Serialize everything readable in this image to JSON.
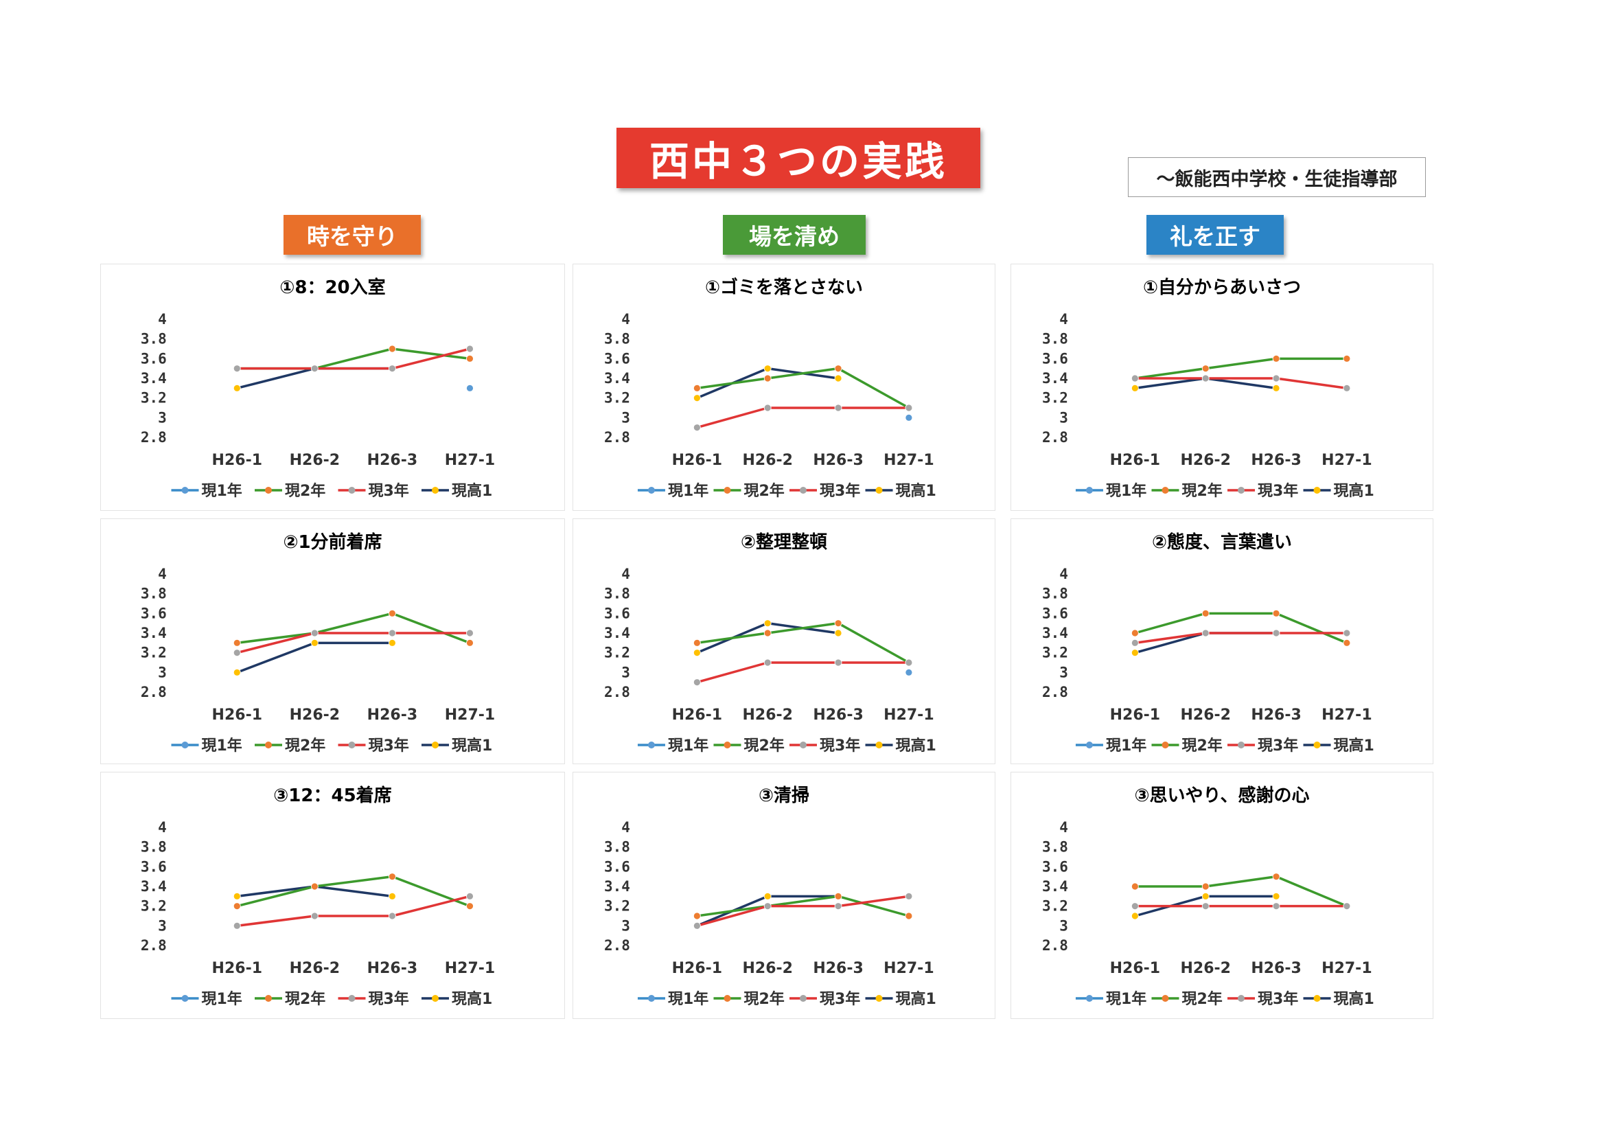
{
  "title": "西中３つの実践",
  "organization": "～飯能西中学校・生徒指導部",
  "categories": [
    {
      "label": "時を守り",
      "color": "#e9702a"
    },
    {
      "label": "場を清め",
      "color": "#4a9a38"
    },
    {
      "label": "礼を正す",
      "color": "#2b84c6"
    }
  ],
  "legend": [
    {
      "name": "現1年",
      "line_color": "#3a8cc9",
      "marker_color": "#5b9bd5"
    },
    {
      "name": "現2年",
      "line_color": "#3c9a2c",
      "marker_color": "#ed7d31"
    },
    {
      "name": "現3年",
      "line_color": "#e03535",
      "marker_color": "#a5a5a5"
    },
    {
      "name": "現高1",
      "line_color": "#1f3864",
      "marker_color": "#ffc000"
    }
  ],
  "chart_data": [
    {
      "type": "line",
      "title": "①8：20入室",
      "categories": [
        "H26-1",
        "H26-2",
        "H26-3",
        "H27-1"
      ],
      "ylim": [
        2.8,
        4
      ],
      "yticks": [
        "4",
        "3.8",
        "3.6",
        "3.4",
        "3.2",
        "3",
        "2.8"
      ],
      "series": [
        {
          "name": "現1年",
          "values": [
            null,
            null,
            null,
            3.3
          ]
        },
        {
          "name": "現2年",
          "values": [
            3.5,
            3.5,
            3.7,
            3.6
          ]
        },
        {
          "name": "現3年",
          "values": [
            3.5,
            3.5,
            3.5,
            3.7
          ]
        },
        {
          "name": "現高1",
          "values": [
            3.3,
            3.5,
            3.5,
            null
          ]
        }
      ]
    },
    {
      "type": "line",
      "title": "①ゴミを落とさない",
      "categories": [
        "H26-1",
        "H26-2",
        "H26-3",
        "H27-1"
      ],
      "ylim": [
        2.8,
        4
      ],
      "yticks": [
        "4",
        "3.8",
        "3.6",
        "3.4",
        "3.2",
        "3",
        "2.8"
      ],
      "series": [
        {
          "name": "現1年",
          "values": [
            null,
            null,
            null,
            3.0
          ]
        },
        {
          "name": "現2年",
          "values": [
            3.3,
            3.4,
            3.5,
            3.1
          ]
        },
        {
          "name": "現3年",
          "values": [
            2.9,
            3.1,
            3.1,
            3.1
          ]
        },
        {
          "name": "現高1",
          "values": [
            3.2,
            3.5,
            3.4,
            null
          ]
        }
      ]
    },
    {
      "type": "line",
      "title": "①自分からあいさつ",
      "categories": [
        "H26-1",
        "H26-2",
        "H26-3",
        "H27-1"
      ],
      "ylim": [
        2.8,
        4
      ],
      "yticks": [
        "4",
        "3.8",
        "3.6",
        "3.4",
        "3.2",
        "3",
        "2.8"
      ],
      "series": [
        {
          "name": "現1年",
          "values": [
            null,
            null,
            null,
            null
          ]
        },
        {
          "name": "現2年",
          "values": [
            3.4,
            3.5,
            3.6,
            3.6
          ]
        },
        {
          "name": "現3年",
          "values": [
            3.4,
            3.4,
            3.4,
            3.3
          ]
        },
        {
          "name": "現高1",
          "values": [
            3.3,
            3.4,
            3.3,
            null
          ]
        }
      ]
    },
    {
      "type": "line",
      "title": "②1分前着席",
      "categories": [
        "H26-1",
        "H26-2",
        "H26-3",
        "H27-1"
      ],
      "ylim": [
        2.8,
        4
      ],
      "yticks": [
        "4",
        "3.8",
        "3.6",
        "3.4",
        "3.2",
        "3",
        "2.8"
      ],
      "series": [
        {
          "name": "現1年",
          "values": [
            null,
            null,
            null,
            null
          ]
        },
        {
          "name": "現2年",
          "values": [
            3.3,
            3.4,
            3.6,
            3.3
          ]
        },
        {
          "name": "現3年",
          "values": [
            3.2,
            3.4,
            3.4,
            3.4
          ]
        },
        {
          "name": "現高1",
          "values": [
            3.0,
            3.3,
            3.3,
            null
          ]
        }
      ]
    },
    {
      "type": "line",
      "title": "②整理整頓",
      "categories": [
        "H26-1",
        "H26-2",
        "H26-3",
        "H27-1"
      ],
      "ylim": [
        2.8,
        4
      ],
      "yticks": [
        "4",
        "3.8",
        "3.6",
        "3.4",
        "3.2",
        "3",
        "2.8"
      ],
      "series": [
        {
          "name": "現1年",
          "values": [
            null,
            null,
            null,
            3.0
          ]
        },
        {
          "name": "現2年",
          "values": [
            3.3,
            3.4,
            3.5,
            3.1
          ]
        },
        {
          "name": "現3年",
          "values": [
            2.9,
            3.1,
            3.1,
            3.1
          ]
        },
        {
          "name": "現高1",
          "values": [
            3.2,
            3.5,
            3.4,
            null
          ]
        }
      ]
    },
    {
      "type": "line",
      "title": "②態度、言葉遣い",
      "categories": [
        "H26-1",
        "H26-2",
        "H26-3",
        "H27-1"
      ],
      "ylim": [
        2.8,
        4
      ],
      "yticks": [
        "4",
        "3.8",
        "3.6",
        "3.4",
        "3.2",
        "3",
        "2.8"
      ],
      "series": [
        {
          "name": "現1年",
          "values": [
            null,
            null,
            null,
            null
          ]
        },
        {
          "name": "現2年",
          "values": [
            3.4,
            3.6,
            3.6,
            3.3
          ]
        },
        {
          "name": "現3年",
          "values": [
            3.3,
            3.4,
            3.4,
            3.4
          ]
        },
        {
          "name": "現高1",
          "values": [
            3.2,
            3.4,
            3.4,
            null
          ]
        }
      ]
    },
    {
      "type": "line",
      "title": "③12：45着席",
      "categories": [
        "H26-1",
        "H26-2",
        "H26-3",
        "H27-1"
      ],
      "ylim": [
        2.8,
        4
      ],
      "yticks": [
        "4",
        "3.8",
        "3.6",
        "3.4",
        "3.2",
        "3",
        "2.8"
      ],
      "series": [
        {
          "name": "現1年",
          "values": [
            null,
            null,
            null,
            null
          ]
        },
        {
          "name": "現2年",
          "values": [
            3.2,
            3.4,
            3.5,
            3.2
          ]
        },
        {
          "name": "現3年",
          "values": [
            3.0,
            3.1,
            3.1,
            3.3
          ]
        },
        {
          "name": "現高1",
          "values": [
            3.3,
            3.4,
            3.3,
            null
          ]
        }
      ]
    },
    {
      "type": "line",
      "title": "③清掃",
      "categories": [
        "H26-1",
        "H26-2",
        "H26-3",
        "H27-1"
      ],
      "ylim": [
        2.8,
        4
      ],
      "yticks": [
        "4",
        "3.8",
        "3.6",
        "3.4",
        "3.2",
        "3",
        "2.8"
      ],
      "series": [
        {
          "name": "現1年",
          "values": [
            null,
            null,
            null,
            null
          ]
        },
        {
          "name": "現2年",
          "values": [
            3.1,
            3.2,
            3.3,
            3.1
          ]
        },
        {
          "name": "現3年",
          "values": [
            3.0,
            3.2,
            3.2,
            3.3
          ]
        },
        {
          "name": "現高1",
          "values": [
            3.0,
            3.3,
            3.3,
            null
          ]
        }
      ]
    },
    {
      "type": "line",
      "title": "③思いやり、感謝の心",
      "categories": [
        "H26-1",
        "H26-2",
        "H26-3",
        "H27-1"
      ],
      "ylim": [
        2.8,
        4
      ],
      "yticks": [
        "4",
        "3.8",
        "3.6",
        "3.4",
        "3.2",
        "3",
        "2.8"
      ],
      "series": [
        {
          "name": "現1年",
          "values": [
            null,
            null,
            null,
            null
          ]
        },
        {
          "name": "現2年",
          "values": [
            3.4,
            3.4,
            3.5,
            3.2
          ]
        },
        {
          "name": "現3年",
          "values": [
            3.2,
            3.2,
            3.2,
            3.2
          ]
        },
        {
          "name": "現高1",
          "values": [
            3.1,
            3.3,
            3.3,
            null
          ]
        }
      ]
    }
  ]
}
